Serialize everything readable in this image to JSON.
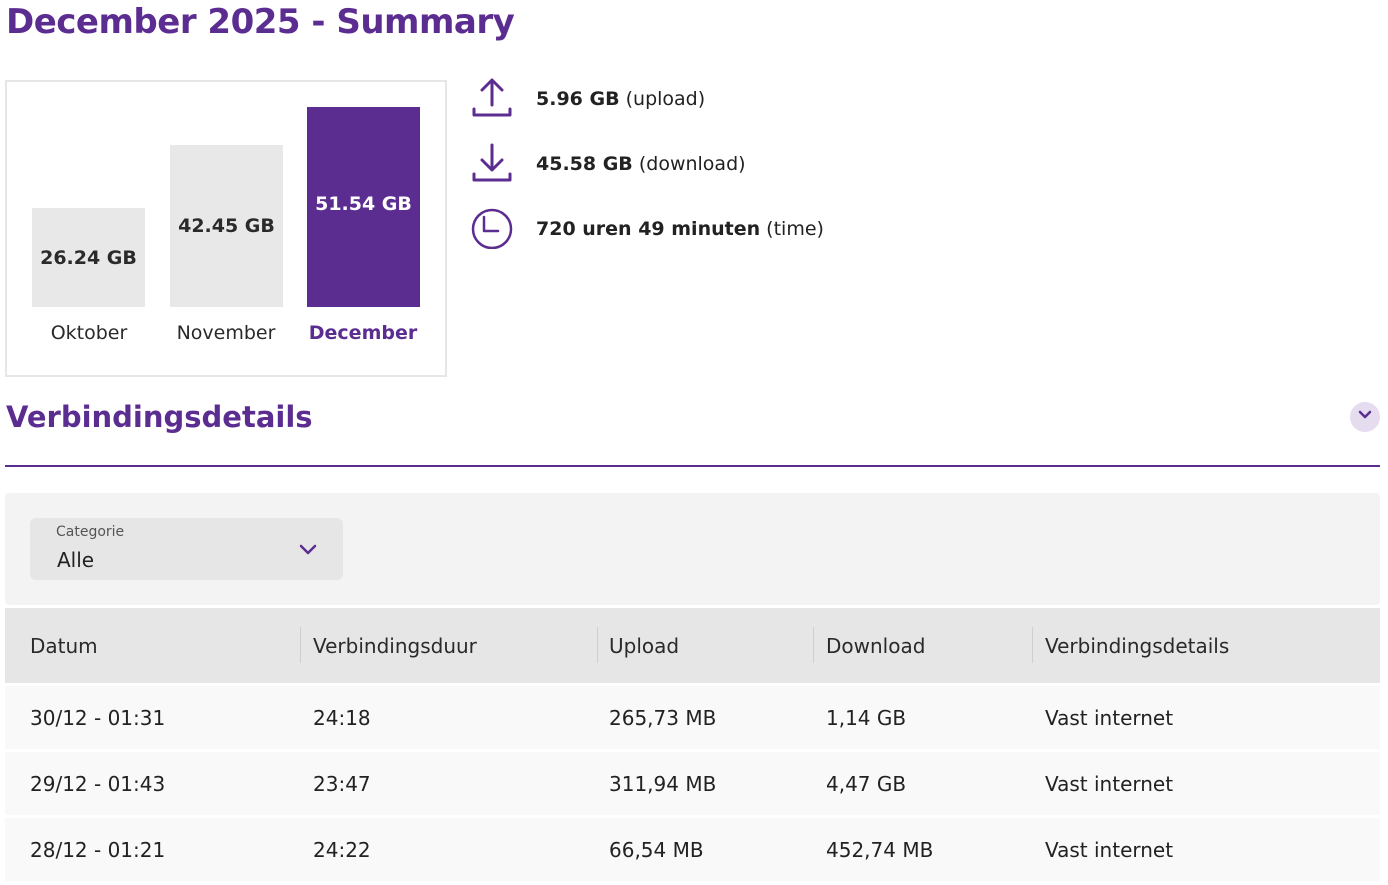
{
  "page": {
    "title": "December 2025 - Summary"
  },
  "usage_chart": {
    "months": [
      {
        "label": "Oktober",
        "value_label": "26.24 GB",
        "value_gb": 26.24,
        "active": false
      },
      {
        "label": "November",
        "value_label": "42.45 GB",
        "value_gb": 42.45,
        "active": false
      },
      {
        "label": "December",
        "value_label": "51.54 GB",
        "value_gb": 51.54,
        "active": true
      }
    ]
  },
  "stats": {
    "upload": {
      "value": "5.96 GB",
      "suffix": "(upload)",
      "icon": "upload-icon"
    },
    "download": {
      "value": "45.58 GB",
      "suffix": "(download)",
      "icon": "download-icon"
    },
    "time": {
      "value": "720 uren 49 minuten",
      "suffix": "(time)",
      "icon": "clock-icon"
    }
  },
  "section": {
    "title": "Verbindingsdetails",
    "toggle_icon": "chevron-down-icon"
  },
  "filter": {
    "caption": "Categorie",
    "value": "Alle"
  },
  "table": {
    "headers": [
      "Datum",
      "Verbindingsduur",
      "Upload",
      "Download",
      "Verbindingsdetails"
    ],
    "rows": [
      [
        "30/12 - 01:31",
        "24:18",
        "265,73 MB",
        "1,14 GB",
        "Vast internet"
      ],
      [
        "29/12 - 01:43",
        "23:47",
        "311,94 MB",
        "4,47 GB",
        "Vast internet"
      ],
      [
        "28/12 - 01:21",
        "24:22",
        "66,54 MB",
        "452,74 MB",
        "Vast internet"
      ]
    ]
  },
  "colors": {
    "accent": "#5c2d91",
    "bar_inactive": "#e8e8e8",
    "panel": "#f3f3f3"
  }
}
